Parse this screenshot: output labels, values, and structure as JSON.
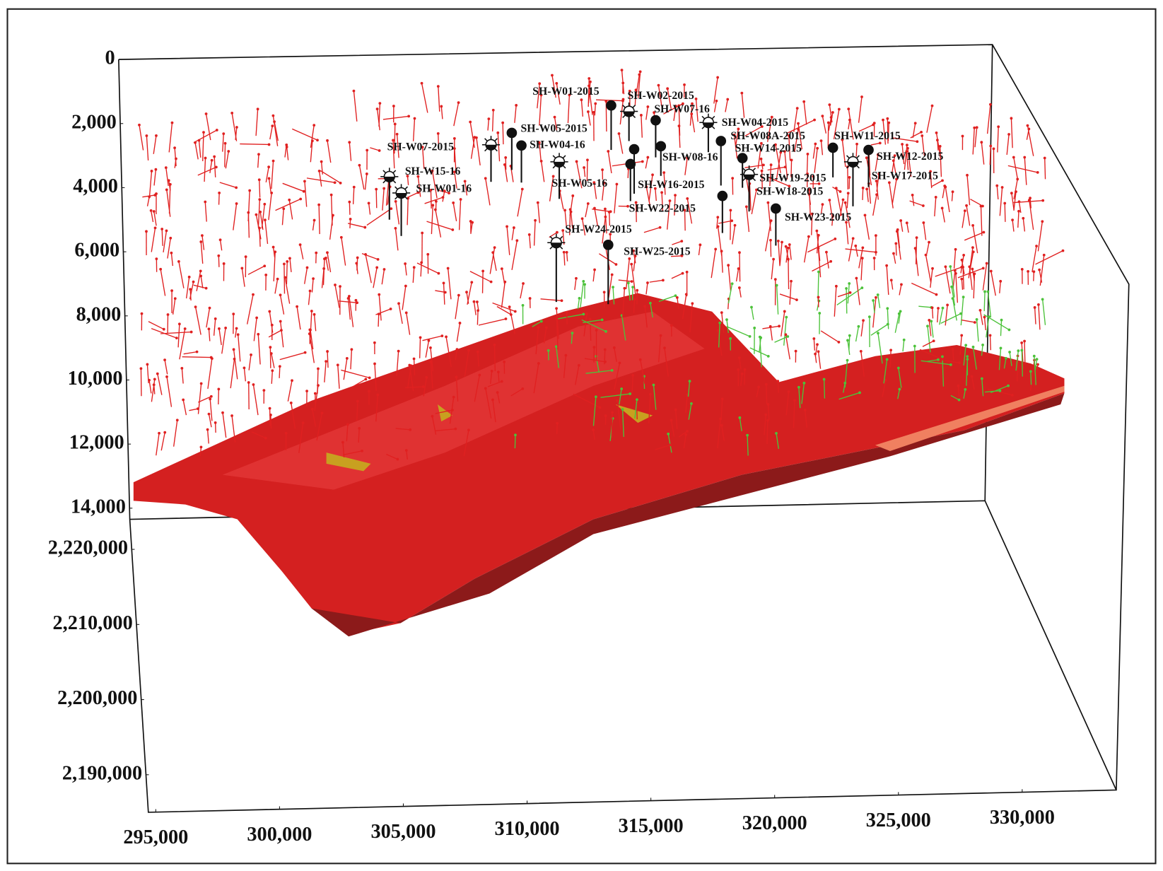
{
  "chart_data": {
    "type": "reservoir3d",
    "zlim": [
      0,
      14000
    ],
    "zticks": [
      0,
      {
        "value": 2000,
        "label": "2,000"
      },
      {
        "value": 4000,
        "label": "4,000"
      },
      {
        "value": 6000,
        "label": "6,000"
      },
      {
        "value": 8000,
        "label": "8,000"
      },
      {
        "value": 10000,
        "label": "10,000"
      },
      {
        "value": 12000,
        "label": "12,000"
      },
      {
        "value": 14000,
        "label": "14,000"
      }
    ],
    "ylim": [
      2185000,
      2224000
    ],
    "yticks": [
      {
        "value": 2220000,
        "label": "2,220,000"
      },
      {
        "value": 2210000,
        "label": "2,210,000"
      },
      {
        "value": 2200000,
        "label": "2,200,000"
      },
      {
        "value": 2190000,
        "label": "2,190,000"
      }
    ],
    "xlim": [
      294700,
      333800
    ],
    "xticks": [
      {
        "value": 295000,
        "label": "295,000"
      },
      {
        "value": 300000,
        "label": "300,000"
      },
      {
        "value": 305000,
        "label": "305,000"
      },
      {
        "value": 310000,
        "label": "310,000"
      },
      {
        "value": 315000,
        "label": "315,000"
      },
      {
        "value": 320000,
        "label": "320,000"
      },
      {
        "value": 325000,
        "label": "325,000"
      },
      {
        "value": 330000,
        "label": "330,000"
      }
    ],
    "wells": [
      "SH-W01-2015",
      "SH-W02-2015",
      "SH-W07-16",
      "SH-W04-2015",
      "SH-W05-2015",
      "SH-W07-2015",
      "SH-W04-16",
      "SH-W08A-2015",
      "SH-W11-2015",
      "SH-W14-2015",
      "SH-W12-2015",
      "SH-W08-16",
      "SH-W15-16",
      "SH-W01-16",
      "SH-W05-16",
      "SH-W16-2015",
      "SH-W19-2015",
      "SH-W17-2015",
      "SH-W18-2015",
      "SH-W22-2015",
      "SH-W23-2015",
      "SH-W24-2015",
      "SH-W25-2015"
    ]
  }
}
